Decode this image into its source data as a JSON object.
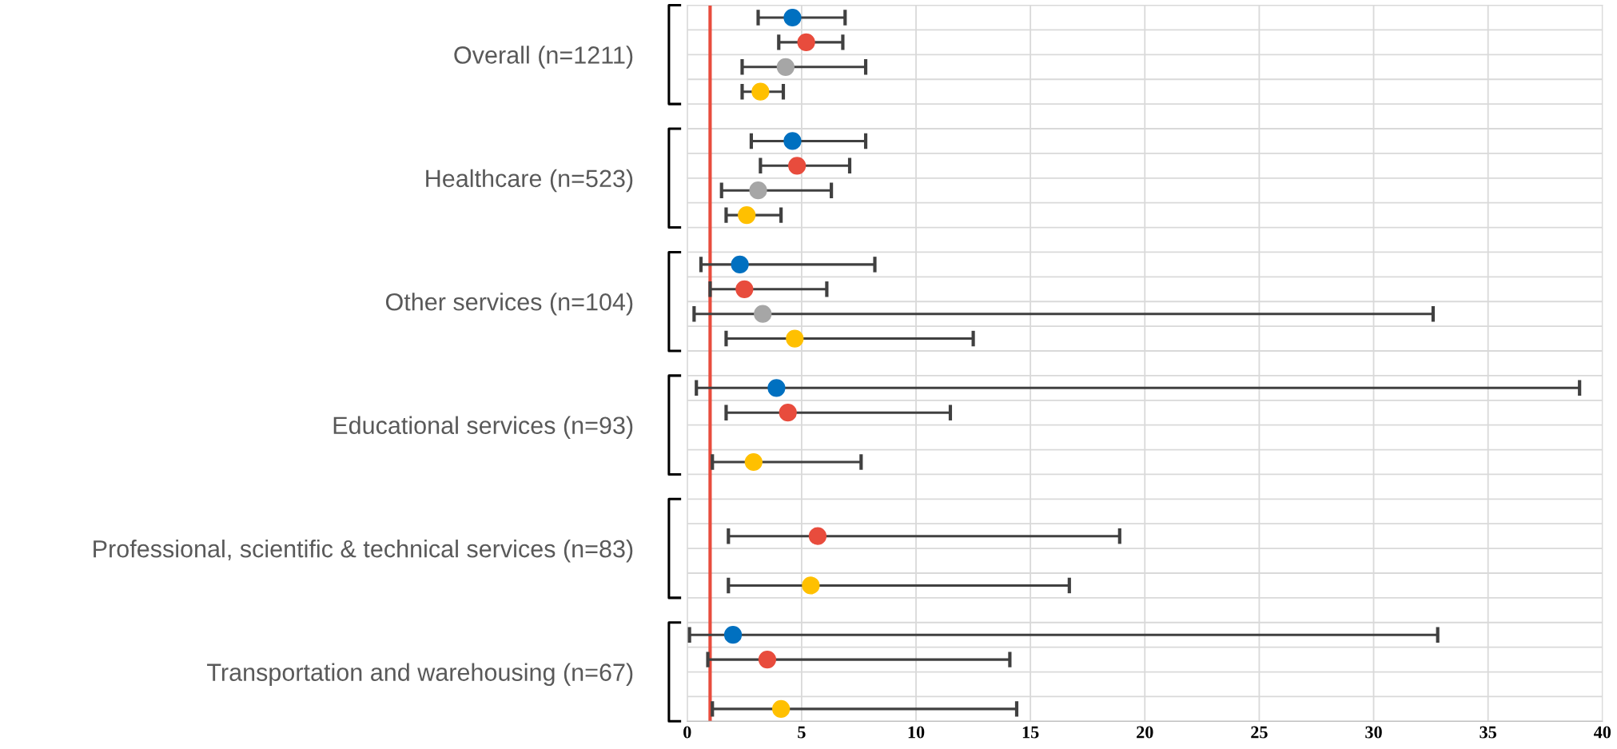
{
  "chart_data": {
    "type": "scatter",
    "orientation": "horizontal",
    "marker": "circle",
    "grid": true,
    "categories": [
      "Overall (n=1211)",
      "Healthcare (n=523)",
      "Other services (n=104)",
      "Educational services (n=93)",
      "Professional, scientific & technical services (n=83)",
      "Transportation and warehousing (n=67)"
    ],
    "series": [
      {
        "color": "#0070c0",
        "values": [
          4.6,
          4.6,
          2.3,
          3.9,
          null,
          2.0
        ],
        "errors": [
          [
            3.1,
            6.9
          ],
          [
            2.8,
            7.8
          ],
          [
            0.6,
            8.2
          ],
          [
            0.4,
            39.0
          ],
          null,
          [
            0.1,
            32.8
          ]
        ]
      },
      {
        "color": "#e84c3d",
        "values": [
          5.2,
          4.8,
          2.5,
          4.4,
          5.7,
          3.5
        ],
        "errors": [
          [
            4.0,
            6.8
          ],
          [
            3.2,
            7.1
          ],
          [
            1.0,
            6.1
          ],
          [
            1.7,
            11.5
          ],
          [
            1.8,
            18.9
          ],
          [
            0.9,
            14.1
          ]
        ]
      },
      {
        "color": "#a6a6a6",
        "values": [
          4.3,
          3.1,
          3.3,
          null,
          null,
          null
        ],
        "errors": [
          [
            2.4,
            7.8
          ],
          [
            1.5,
            6.3
          ],
          [
            0.3,
            32.6
          ],
          null,
          null,
          null
        ]
      },
      {
        "color": "#ffc000",
        "values": [
          3.2,
          2.6,
          4.7,
          2.9,
          5.4,
          4.1
        ],
        "errors": [
          [
            2.4,
            4.2
          ],
          [
            1.7,
            4.1
          ],
          [
            1.7,
            12.5
          ],
          [
            1.1,
            7.6
          ],
          [
            1.8,
            16.7
          ],
          [
            1.1,
            14.4
          ]
        ]
      }
    ],
    "xlim": [
      0,
      40
    ],
    "xticks": [
      0,
      5,
      10,
      15,
      20,
      25,
      30,
      35,
      40
    ],
    "ref_lines": [
      {
        "axis": "x",
        "value": 1,
        "color": "#e84c3d"
      }
    ]
  }
}
